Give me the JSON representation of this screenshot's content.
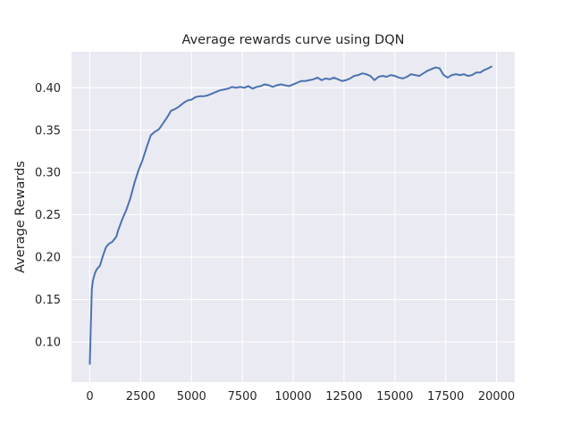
{
  "chart_data": {
    "type": "line",
    "title": "Average rewards curve using DQN",
    "xlabel": "",
    "ylabel": "Average Rewards",
    "xlim": [
      -900,
      20900
    ],
    "ylim": [
      0.0525,
      0.4425
    ],
    "xticks": [
      0,
      2500,
      5000,
      7500,
      10000,
      12500,
      15000,
      17500,
      20000
    ],
    "yticks": [
      0.1,
      0.15,
      0.2,
      0.25,
      0.3,
      0.35,
      0.4
    ],
    "xtick_labels": [
      "0",
      "2500",
      "5000",
      "7500",
      "10000",
      "12500",
      "15000",
      "17500",
      "20000"
    ],
    "ytick_labels": [
      "0.10",
      "0.15",
      "0.20",
      "0.25",
      "0.30",
      "0.35",
      "0.40"
    ],
    "grid": true,
    "background_color": "#eaeaf2",
    "grid_color": "#ffffff",
    "line_color": "#4c72b0",
    "series": [
      {
        "name": "",
        "x": [
          0,
          50,
          100,
          150,
          250,
          350,
          500,
          650,
          800,
          950,
          1100,
          1300,
          1400,
          1600,
          1800,
          2000,
          2200,
          2400,
          2600,
          2800,
          3000,
          3200,
          3400,
          3600,
          3800,
          4000,
          4200,
          4400,
          4600,
          4800,
          5000,
          5200,
          5400,
          5600,
          5800,
          6000,
          6200,
          6400,
          6600,
          6800,
          7000,
          7200,
          7400,
          7600,
          7800,
          8000,
          8200,
          8400,
          8600,
          8800,
          9000,
          9200,
          9400,
          9600,
          9800,
          10000,
          10200,
          10400,
          10600,
          10800,
          11000,
          11200,
          11400,
          11600,
          11800,
          12000,
          12200,
          12400,
          12600,
          12800,
          13000,
          13200,
          13400,
          13600,
          13800,
          14000,
          14200,
          14400,
          14600,
          14800,
          15000,
          15200,
          15400,
          15600,
          15800,
          16000,
          16200,
          16400,
          16600,
          16800,
          17000,
          17200,
          17400,
          17600,
          17800,
          18000,
          18200,
          18400,
          18600,
          18800,
          19000,
          19200,
          19400,
          19600,
          19750
        ],
        "y": [
          0.074,
          0.12,
          0.162,
          0.172,
          0.181,
          0.186,
          0.19,
          0.202,
          0.212,
          0.216,
          0.218,
          0.224,
          0.232,
          0.245,
          0.256,
          0.27,
          0.288,
          0.303,
          0.315,
          0.33,
          0.344,
          0.348,
          0.351,
          0.358,
          0.365,
          0.373,
          0.375,
          0.378,
          0.382,
          0.385,
          0.386,
          0.389,
          0.39,
          0.39,
          0.391,
          0.393,
          0.395,
          0.397,
          0.398,
          0.399,
          0.401,
          0.4,
          0.401,
          0.4,
          0.402,
          0.399,
          0.401,
          0.402,
          0.404,
          0.403,
          0.401,
          0.403,
          0.404,
          0.403,
          0.402,
          0.404,
          0.406,
          0.408,
          0.408,
          0.409,
          0.41,
          0.412,
          0.409,
          0.411,
          0.41,
          0.412,
          0.41,
          0.408,
          0.409,
          0.411,
          0.414,
          0.415,
          0.417,
          0.416,
          0.414,
          0.409,
          0.413,
          0.414,
          0.413,
          0.415,
          0.414,
          0.412,
          0.411,
          0.413,
          0.416,
          0.415,
          0.414,
          0.417,
          0.42,
          0.422,
          0.424,
          0.423,
          0.415,
          0.412,
          0.415,
          0.416,
          0.415,
          0.416,
          0.414,
          0.415,
          0.418,
          0.418,
          0.421,
          0.423,
          0.425
        ]
      }
    ]
  }
}
